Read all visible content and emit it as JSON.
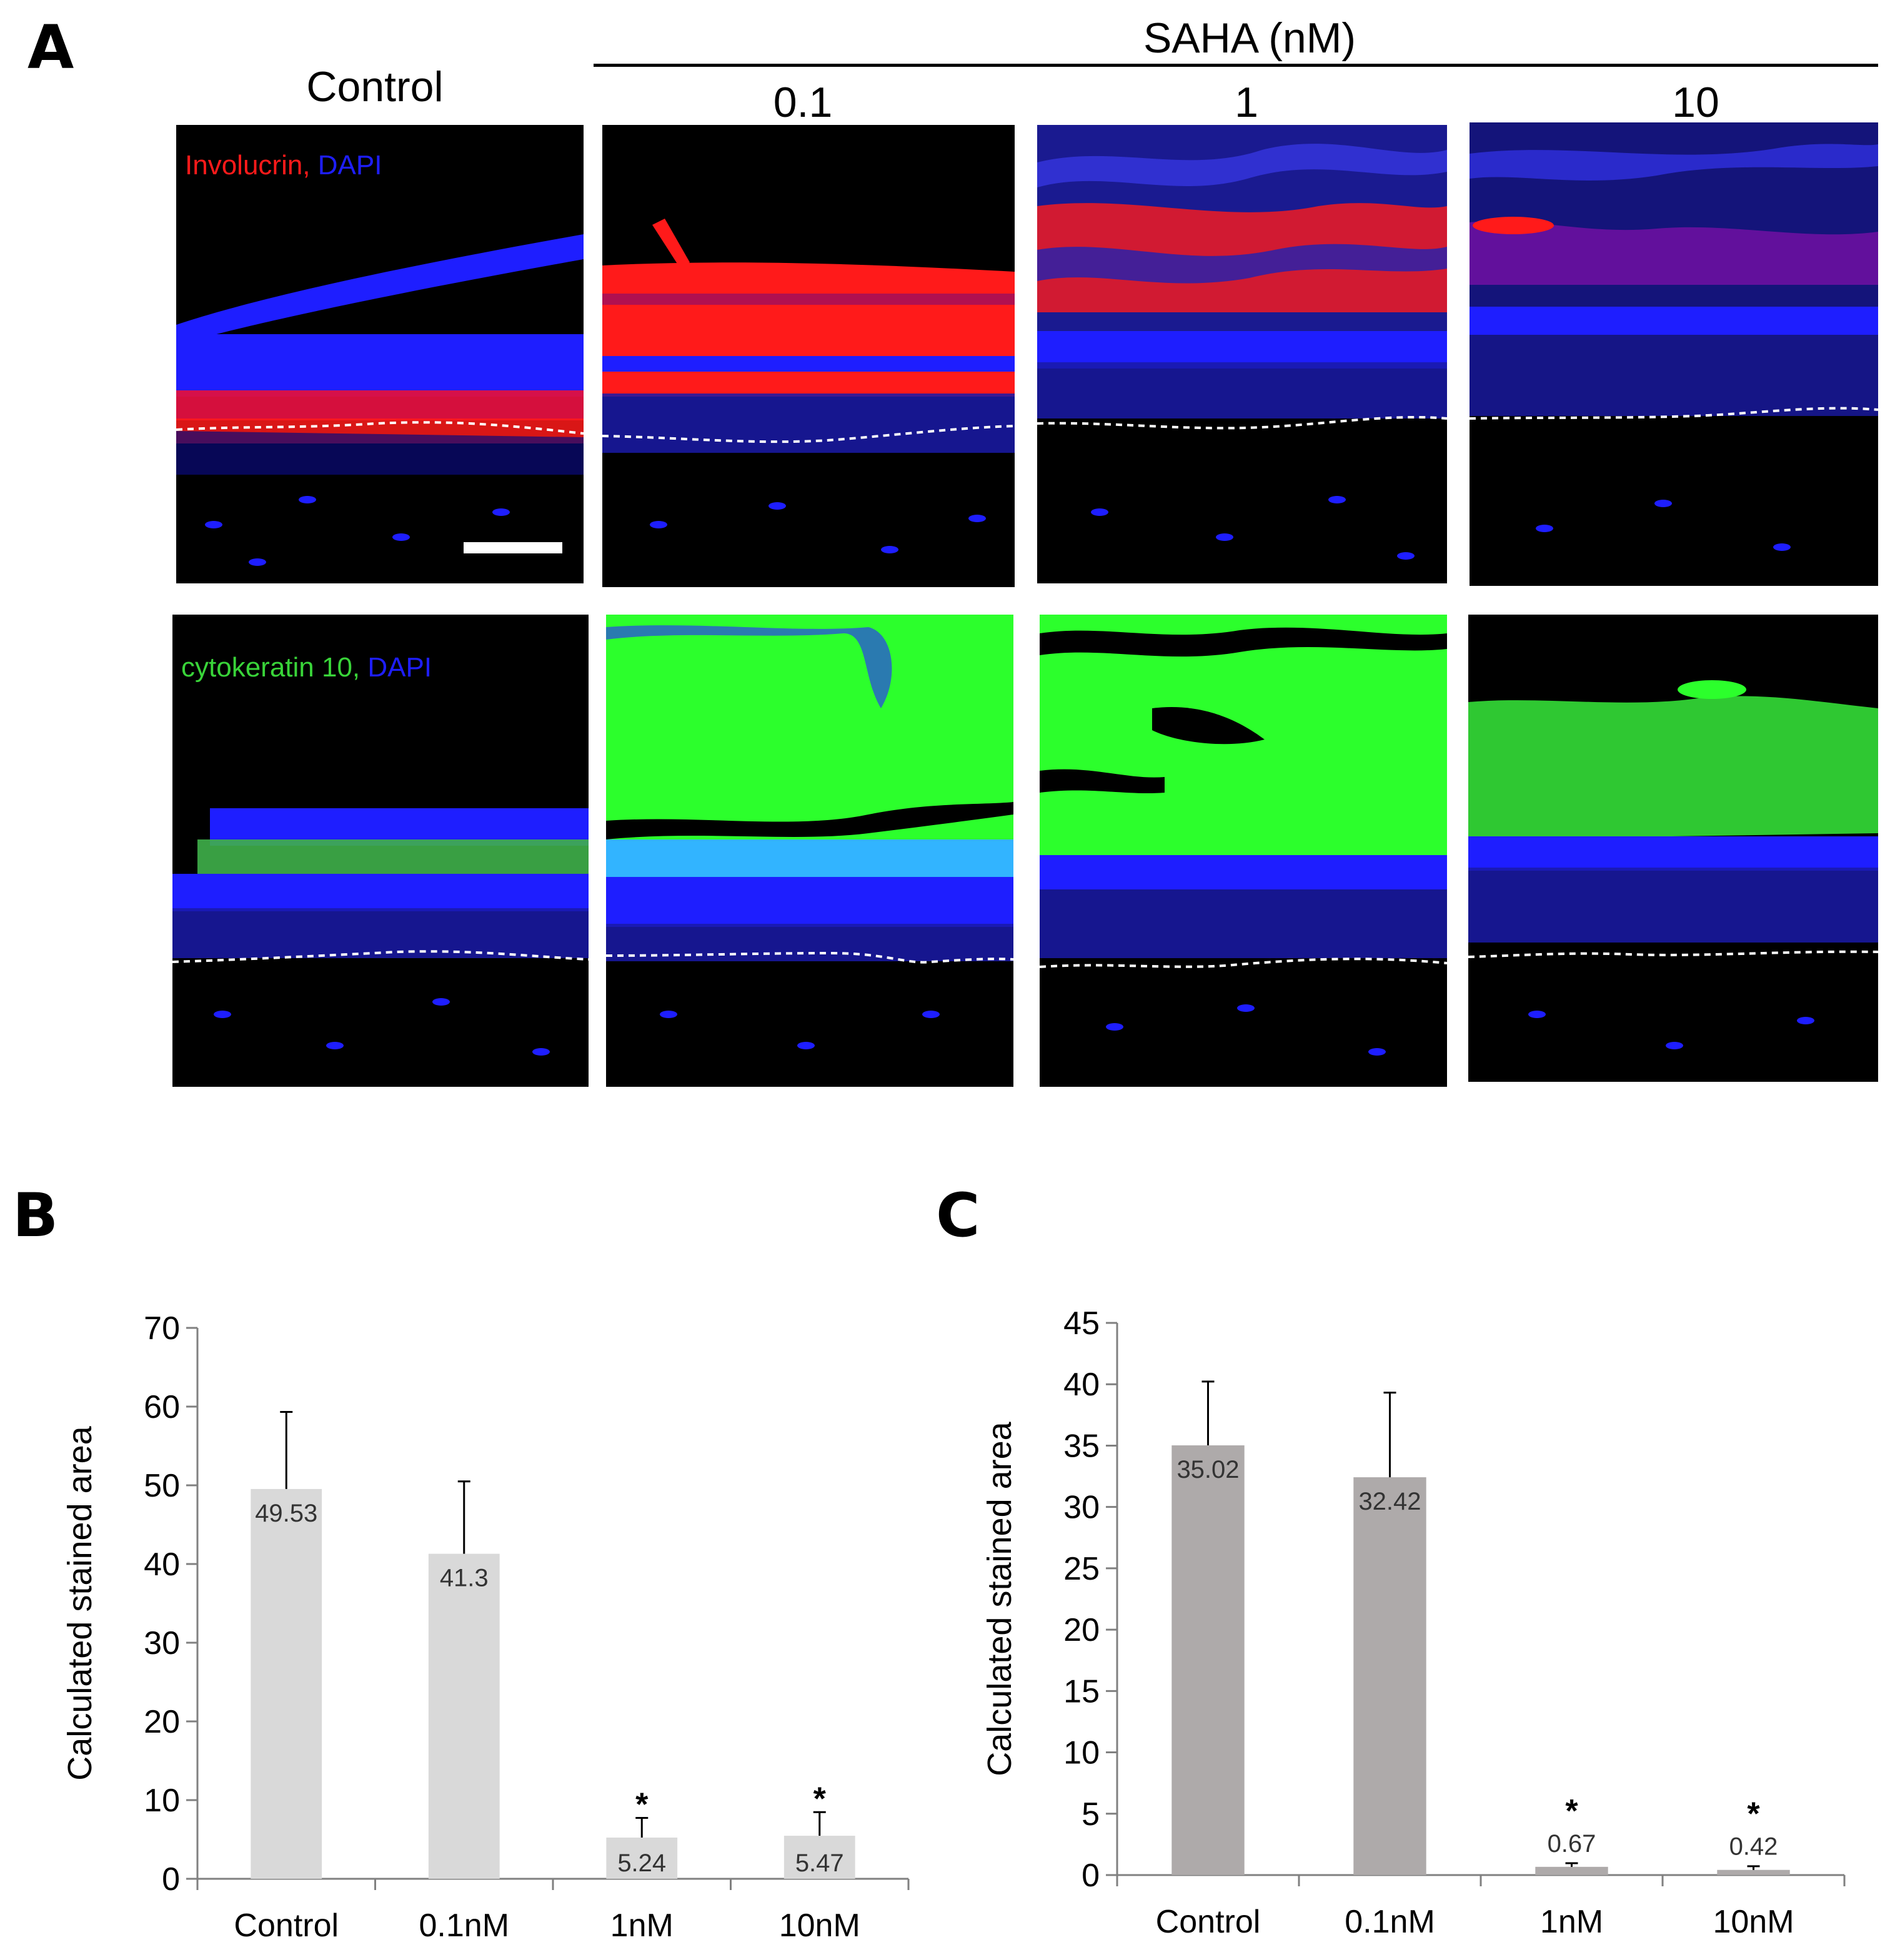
{
  "figure": {
    "panel_letters": {
      "a": "A",
      "b": "B",
      "c": "C"
    },
    "group_header": "SAHA (nM)",
    "column_labels": [
      "Control",
      "0.1",
      "1",
      "10"
    ],
    "row_labels": [
      {
        "marker": "Involucrin,",
        "marker_color": "#ff1a1a",
        "counter": "DAPI",
        "counter_color": "#1e1eff"
      },
      {
        "marker": "cytokeratin 10,",
        "marker_color": "#39d439",
        "counter": "DAPI",
        "counter_color": "#1e1eff"
      }
    ],
    "colors": {
      "involucrin": "#ff1a1a",
      "cytokeratin10": "#2cff2c",
      "dapi": "#1e1eff",
      "boundary": "#ffffff"
    }
  },
  "chart_data": [
    {
      "panel": "B",
      "type": "bar",
      "categories": [
        "Control",
        "0.1nM",
        "1nM",
        "10nM"
      ],
      "values": [
        49.53,
        41.3,
        5.24,
        5.47
      ],
      "value_labels": [
        "49.53",
        "41.3",
        "5.24",
        "5.47"
      ],
      "error_plus": [
        9.8,
        9.2,
        2.5,
        3.0
      ],
      "significance": [
        "",
        "",
        "*",
        "*"
      ],
      "ylabel": "Calculated stained area",
      "xlabel": "",
      "ylim": [
        0,
        70
      ],
      "yticks": [
        0,
        10,
        20,
        30,
        40,
        50,
        60,
        70
      ],
      "bar_color": "#d9d9d9",
      "grid": false
    },
    {
      "panel": "C",
      "type": "bar",
      "categories": [
        "Control",
        "0.1nM",
        "1nM",
        "10nM"
      ],
      "values": [
        35.02,
        32.42,
        0.67,
        0.42
      ],
      "value_labels": [
        "35.02",
        "32.42",
        "0.67",
        "0.42"
      ],
      "error_plus": [
        5.2,
        6.9,
        0.3,
        0.3
      ],
      "significance": [
        "",
        "",
        "*",
        "*"
      ],
      "ylabel": "Calculated stained area",
      "xlabel": "",
      "ylim": [
        0,
        45
      ],
      "yticks": [
        0,
        5,
        10,
        15,
        20,
        25,
        30,
        35,
        40,
        45
      ],
      "bar_color": "#aeaaaa",
      "grid": false
    }
  ]
}
